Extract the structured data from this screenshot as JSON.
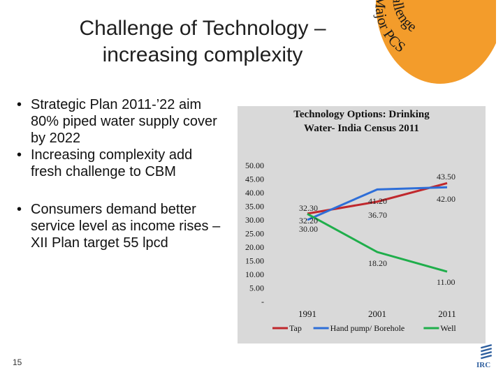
{
  "slide": {
    "title_line1": "Challenge of Technology –",
    "title_line2": "increasing complexity",
    "badge_line1": "Major PCS",
    "badge_line2": "challenge",
    "bullets": [
      "Strategic Plan 2011-’22 aim 80% piped water supply cover by 2022",
      "Increasing complexity add fresh challenge to CBM",
      "Consumers demand better service level as income rises – XII Plan target 55 lpcd"
    ],
    "page_number": "15",
    "logo_text": "IRC",
    "colors": {
      "badge": "#f39c2b",
      "background": "#ffffff",
      "chart_bg": "#d9d9d9"
    }
  },
  "chart_data": {
    "type": "line",
    "title_line1": "Technology Options: Drinking",
    "title_line2": "Water- India Census 2011",
    "categories": [
      "1991",
      "2001",
      "2011"
    ],
    "ylim": [
      0,
      50
    ],
    "y_ticks": [
      "-",
      "5.00",
      "10.00",
      "15.00",
      "20.00",
      "25.00",
      "30.00",
      "35.00",
      "40.00",
      "45.00",
      "50.00"
    ],
    "series": [
      {
        "name": "Tap",
        "color": "#c0282d",
        "values": [
          32.3,
          36.7,
          43.5
        ],
        "labels": [
          "32.30",
          "36.70",
          "43.50"
        ]
      },
      {
        "name": "Hand pump/ Borehole",
        "color": "#2e6ed8",
        "values": [
          30.0,
          41.2,
          42.0
        ],
        "labels": [
          "30.00",
          "41.20",
          "42.00"
        ]
      },
      {
        "name": "Well",
        "color": "#1fae4b",
        "values": [
          32.2,
          18.2,
          11.0
        ],
        "labels": [
          "32.20",
          "18.20",
          "11.00"
        ]
      }
    ]
  }
}
